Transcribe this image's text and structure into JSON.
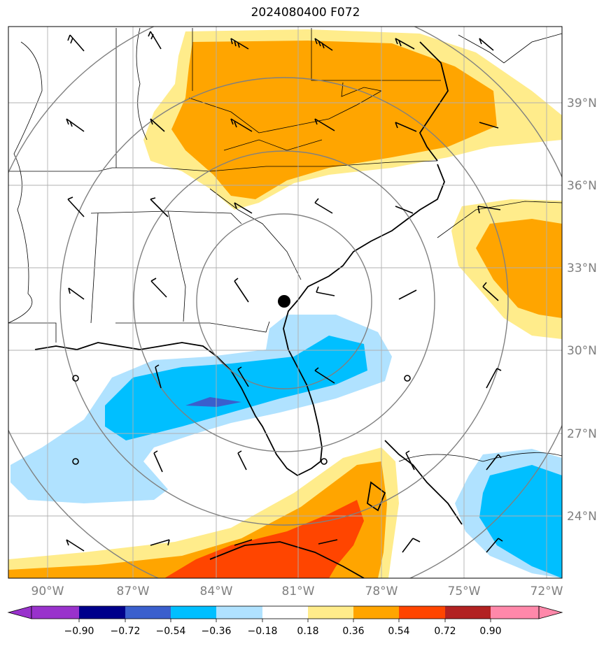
{
  "title": "2024080400 F072",
  "map": {
    "lon_labels": [
      "90°W",
      "87°W",
      "84°W",
      "81°W",
      "78°W",
      "75°W",
      "72°W"
    ],
    "lat_labels": [
      "39°N",
      "36°N",
      "33°N",
      "30°N",
      "27°N",
      "24°N"
    ],
    "label_color": "#7f7f7f",
    "center_marker": "storm-center"
  },
  "colorbar": {
    "ticks": [
      "−0.90",
      "−0.72",
      "−0.54",
      "−0.36",
      "−0.18",
      "0.18",
      "0.36",
      "0.54",
      "0.72",
      "0.90"
    ],
    "colors": [
      "#9932cc",
      "#00008b",
      "#3a5fcd",
      "#00bfff",
      "#b0e2ff",
      "#ffffff",
      "#ffec8b",
      "#ffa500",
      "#ff4500",
      "#b22222",
      "#ff88aa"
    ]
  }
}
